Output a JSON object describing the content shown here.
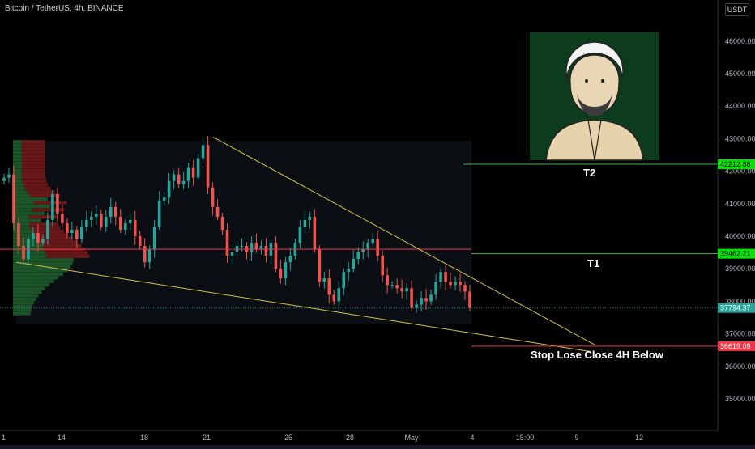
{
  "chart_title": "Bitcoin / TetherUS, 4h, BINANCE",
  "currency_badge": "USDT",
  "chart_data": {
    "type": "candlestick",
    "title": "Bitcoin / TetherUS, 4h, BINANCE",
    "y_ticks": [
      35000,
      36000,
      37000,
      38000,
      39000,
      40000,
      41000,
      42000,
      43000,
      44000,
      45000,
      46000
    ],
    "x_ticks": [
      "1",
      "14",
      "18",
      "21",
      "25",
      "28",
      "May",
      "4",
      "15:00",
      "9",
      "12"
    ],
    "ylim": [
      34300,
      47200
    ],
    "current_price": 37794.37,
    "current_price_label": "37794.37",
    "levels": [
      {
        "name": "T2",
        "value": 42212.88,
        "label": "42212.88",
        "color": "#00e600",
        "line_color": "#4caf50"
      },
      {
        "name": "T1",
        "value": 39462.21,
        "label": "39462.21",
        "color": "#00e600",
        "line_color": "#4caf50"
      },
      {
        "name": "Stop Lose Close 4H Below",
        "value": 36619.09,
        "label": "36619.09",
        "color": "#f23645",
        "line_color": "#f23645"
      }
    ],
    "resistance_red_line": 39600,
    "wedge_upper_line": [
      [
        "21",
        43050
      ],
      [
        "9",
        36650
      ]
    ],
    "wedge_lower_line": [
      [
        "1",
        39200
      ],
      [
        "9",
        36450
      ]
    ],
    "close_prices": [
      41800,
      41900,
      40400,
      39700,
      39300,
      39900,
      40100,
      39800,
      39900,
      40500,
      41300,
      40700,
      40400,
      40100,
      40200,
      39900,
      40300,
      40500,
      40600,
      40700,
      40300,
      40600,
      40900,
      40600,
      40200,
      40400,
      40500,
      40000,
      39700,
      39200,
      39600,
      40300,
      41100,
      41200,
      41700,
      41900,
      41600,
      41700,
      42100,
      41800,
      42400,
      42800,
      41500,
      40900,
      40600,
      40200,
      39400,
      39500,
      39700,
      39700,
      39500,
      39800,
      39600,
      39700,
      39400,
      39800,
      39000,
      38700,
      39200,
      39400,
      39800,
      40300,
      40500,
      40600,
      39600,
      38600,
      38700,
      38200,
      38000,
      38400,
      38900,
      39000,
      39300,
      39500,
      39600,
      39800,
      39900,
      39400,
      38800,
      38500,
      38500,
      38400,
      38300,
      38400,
      37800,
      37900,
      38100,
      38000,
      38200,
      38600,
      38900,
      38600,
      38500,
      38600,
      38500,
      38300,
      37800
    ]
  },
  "colors": {
    "bull": "#26a69a",
    "bear": "#ef5350",
    "wedge": "#d4c24a",
    "red_line": "#f23645"
  }
}
